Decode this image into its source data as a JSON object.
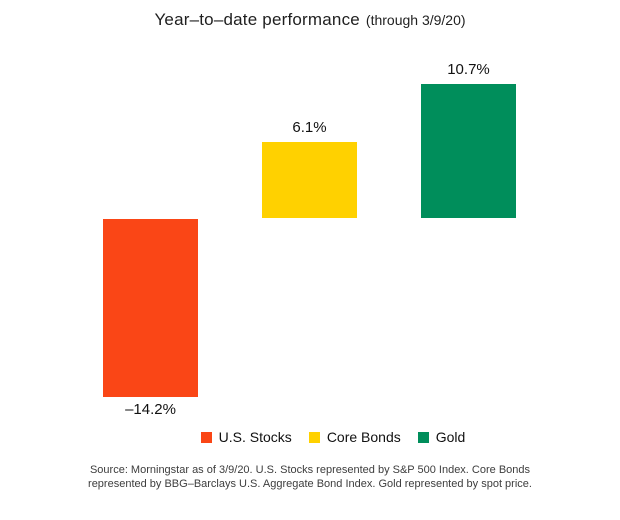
{
  "title": {
    "main": "Year–to–date performance",
    "sub": "(through 3/9/20)"
  },
  "chart_data": {
    "type": "bar",
    "title": "Year–to–date performance (through 3/9/20)",
    "categories": [
      "U.S. Stocks",
      "Core Bonds",
      "Gold"
    ],
    "values": [
      -14.2,
      6.1,
      10.7
    ],
    "labels": [
      "–14.2%",
      "6.1%",
      "10.7%"
    ],
    "colors": [
      "#FA4616",
      "#FFD100",
      "#008E5B"
    ],
    "xlabel": "",
    "ylabel": "",
    "ylim": [
      -16,
      12
    ],
    "grid": false,
    "axis_visible": false,
    "legend_position": "bottom"
  },
  "source": {
    "line1": "Source: Morningstar as of 3/9/20. U.S. Stocks represented by S&P 500 Index. Core Bonds",
    "line2": "represented by BBG–Barclays U.S. Aggregate Bond Index. Gold represented by spot price."
  }
}
